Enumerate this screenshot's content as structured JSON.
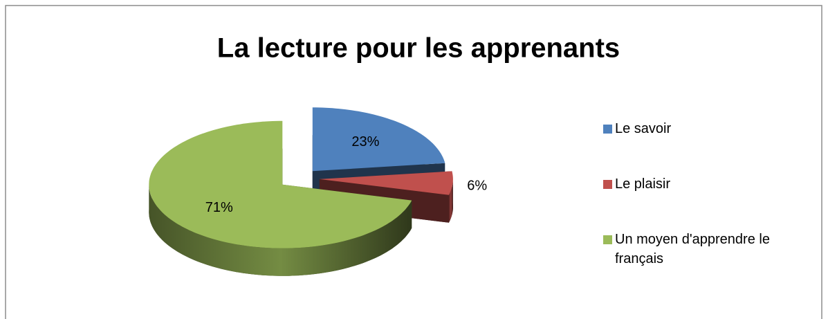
{
  "chart_data": {
    "type": "pie",
    "title": "La lecture pour les apprenants",
    "categories": [
      "Le savoir",
      "Le plaisir",
      "Un moyen d'apprendre le français"
    ],
    "values": [
      23,
      6,
      71
    ],
    "value_labels": [
      "23%",
      "6%",
      "71%"
    ],
    "colors": [
      "#4f81bd",
      "#c0504d",
      "#9bbb59"
    ],
    "legend": "right"
  }
}
